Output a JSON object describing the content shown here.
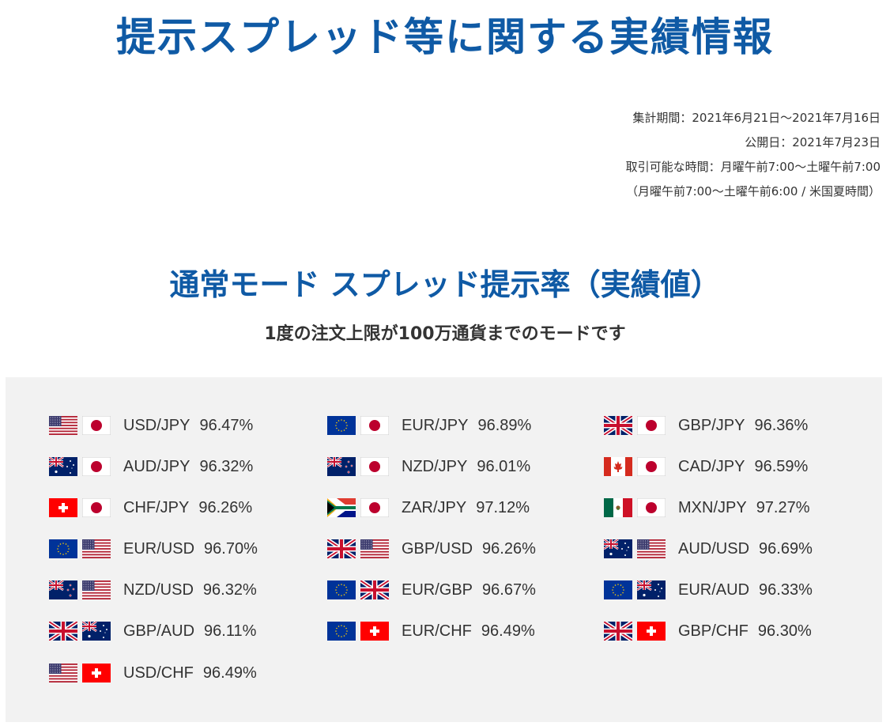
{
  "header": {
    "title": "提示スプレッド等に関する実績情報"
  },
  "meta": {
    "period": "集計期間：2021年6月21日～2021年7月16日",
    "published": "公開日：2021年7月23日",
    "trading_hours": "取引可能な時間：月曜午前7:00～土曜午前7:00",
    "trading_hours_dst": "（月曜午前7:00～土曜午前6:00 / 米国夏時間）"
  },
  "section": {
    "title": "通常モード スプレッド提示率（実績値）",
    "subtitle": "1度の注文上限が100万通貨までのモードです"
  },
  "pairs": [
    {
      "label": "USD/JPY",
      "rate": "96.47%",
      "flags": [
        "us-flag-icon",
        "jp-flag-icon"
      ]
    },
    {
      "label": "EUR/JPY",
      "rate": "96.89%",
      "flags": [
        "eu-flag-icon",
        "jp-flag-icon"
      ]
    },
    {
      "label": "GBP/JPY",
      "rate": "96.36%",
      "flags": [
        "gb-flag-icon",
        "jp-flag-icon"
      ]
    },
    {
      "label": "AUD/JPY",
      "rate": "96.32%",
      "flags": [
        "au-flag-icon",
        "jp-flag-icon"
      ]
    },
    {
      "label": "NZD/JPY",
      "rate": "96.01%",
      "flags": [
        "nz-flag-icon",
        "jp-flag-icon"
      ]
    },
    {
      "label": "CAD/JPY",
      "rate": "96.59%",
      "flags": [
        "ca-flag-icon",
        "jp-flag-icon"
      ]
    },
    {
      "label": "CHF/JPY",
      "rate": "96.26%",
      "flags": [
        "ch-flag-icon",
        "jp-flag-icon"
      ]
    },
    {
      "label": "ZAR/JPY",
      "rate": "97.12%",
      "flags": [
        "za-flag-icon",
        "jp-flag-icon"
      ]
    },
    {
      "label": "MXN/JPY",
      "rate": "97.27%",
      "flags": [
        "mx-flag-icon",
        "jp-flag-icon"
      ]
    },
    {
      "label": "EUR/USD",
      "rate": "96.70%",
      "flags": [
        "eu-flag-icon",
        "us-flag-icon"
      ]
    },
    {
      "label": "GBP/USD",
      "rate": "96.26%",
      "flags": [
        "gb-flag-icon",
        "us-flag-icon"
      ]
    },
    {
      "label": "AUD/USD",
      "rate": "96.69%",
      "flags": [
        "au-flag-icon",
        "us-flag-icon"
      ]
    },
    {
      "label": "NZD/USD",
      "rate": "96.32%",
      "flags": [
        "nz-flag-icon",
        "us-flag-icon"
      ]
    },
    {
      "label": "EUR/GBP",
      "rate": "96.67%",
      "flags": [
        "eu-flag-icon",
        "gb-flag-icon"
      ]
    },
    {
      "label": "EUR/AUD",
      "rate": "96.33%",
      "flags": [
        "eu-flag-icon",
        "au-flag-icon"
      ]
    },
    {
      "label": "GBP/AUD",
      "rate": "96.11%",
      "flags": [
        "gb-flag-icon",
        "au-flag-icon"
      ]
    },
    {
      "label": "EUR/CHF",
      "rate": "96.49%",
      "flags": [
        "eu-flag-icon",
        "ch-flag-icon"
      ]
    },
    {
      "label": "GBP/CHF",
      "rate": "96.30%",
      "flags": [
        "gb-flag-icon",
        "ch-flag-icon"
      ]
    },
    {
      "label": "USD/CHF",
      "rate": "96.49%",
      "flags": [
        "us-flag-icon",
        "ch-flag-icon"
      ]
    }
  ],
  "colors": {
    "title_blue": "#0f5aa5",
    "panel_bg": "#f2f2f2",
    "text": "#333333"
  }
}
